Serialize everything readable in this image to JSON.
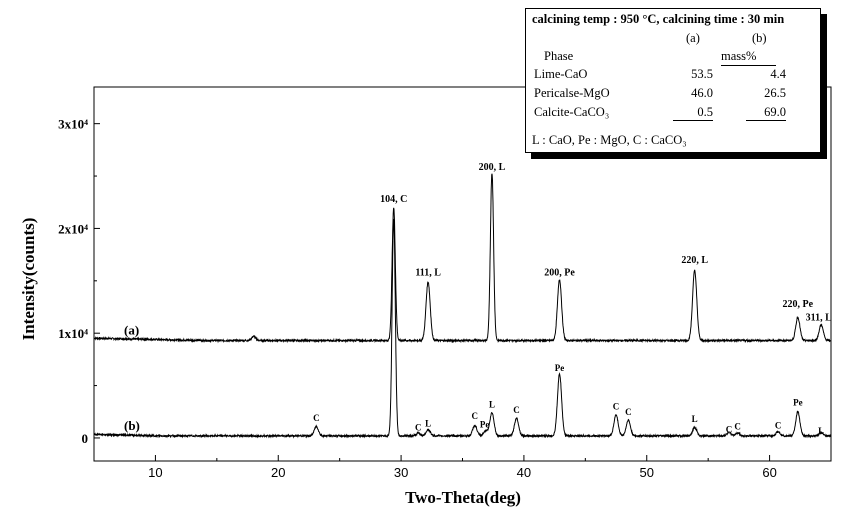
{
  "chart_data": {
    "type": "line",
    "xlabel": "Two-Theta(deg)",
    "ylabel": "Intensity(counts)",
    "xlim": [
      5,
      65
    ],
    "ylim": [
      -2200,
      33500
    ],
    "x_ticks": [
      "10",
      "20",
      "30",
      "40",
      "50",
      "60"
    ],
    "y_ticks": [
      {
        "value": 0,
        "label": "0"
      },
      {
        "value": 10000,
        "label": "1x10⁴"
      },
      {
        "value": 20000,
        "label": "2x10⁴"
      },
      {
        "value": 30000,
        "label": "3x10⁴"
      }
    ],
    "grid": false,
    "series": [
      {
        "name": "(a)",
        "baseline": 9300,
        "peaks": [
          {
            "x": 18.0,
            "h": 400
          },
          {
            "x": 29.4,
            "h": 12700
          },
          {
            "x": 32.2,
            "h": 5600
          },
          {
            "x": 37.4,
            "h": 16000
          },
          {
            "x": 42.9,
            "h": 5800
          },
          {
            "x": 53.9,
            "h": 6700
          },
          {
            "x": 62.3,
            "h": 2200
          },
          {
            "x": 64.2,
            "h": 1500
          }
        ],
        "annotations": [
          {
            "x": 29.4,
            "y": 22500,
            "text": "104, C"
          },
          {
            "x": 32.2,
            "y": 15500,
            "text": "111, L"
          },
          {
            "x": 37.4,
            "y": 25600,
            "text": "200, L"
          },
          {
            "x": 42.9,
            "y": 15500,
            "text": "200, Pe"
          },
          {
            "x": 53.9,
            "y": 16700,
            "text": "220, L"
          },
          {
            "x": 62.3,
            "y": 12500,
            "text": "220, Pe"
          },
          {
            "x": 64.0,
            "y": 11200,
            "text": "311, L"
          }
        ]
      },
      {
        "name": "(b)",
        "baseline": 200,
        "peaks": [
          {
            "x": 23.1,
            "h": 900
          },
          {
            "x": 29.4,
            "h": 20700
          },
          {
            "x": 31.4,
            "h": 250
          },
          {
            "x": 32.2,
            "h": 600
          },
          {
            "x": 36.0,
            "h": 1000
          },
          {
            "x": 36.9,
            "h": 500
          },
          {
            "x": 37.4,
            "h": 2200
          },
          {
            "x": 39.4,
            "h": 1700
          },
          {
            "x": 42.9,
            "h": 5900
          },
          {
            "x": 47.5,
            "h": 2000
          },
          {
            "x": 48.5,
            "h": 1500
          },
          {
            "x": 53.9,
            "h": 800
          },
          {
            "x": 56.7,
            "h": 300
          },
          {
            "x": 57.4,
            "h": 300
          },
          {
            "x": 60.7,
            "h": 400
          },
          {
            "x": 62.3,
            "h": 2300
          },
          {
            "x": 64.2,
            "h": 300
          }
        ],
        "annotations": [
          {
            "x": 23.1,
            "y": 1600,
            "text": "C"
          },
          {
            "x": 31.4,
            "y": 700,
            "text": "C"
          },
          {
            "x": 32.2,
            "y": 1100,
            "text": "L"
          },
          {
            "x": 36.0,
            "y": 1800,
            "text": "C"
          },
          {
            "x": 36.8,
            "y": 1000,
            "text": "Pe"
          },
          {
            "x": 37.4,
            "y": 2900,
            "text": "L"
          },
          {
            "x": 39.4,
            "y": 2400,
            "text": "C"
          },
          {
            "x": 42.9,
            "y": 6400,
            "text": "Pe"
          },
          {
            "x": 47.5,
            "y": 2700,
            "text": "C"
          },
          {
            "x": 48.5,
            "y": 2200,
            "text": "C"
          },
          {
            "x": 53.9,
            "y": 1500,
            "text": "L"
          },
          {
            "x": 56.7,
            "y": 500,
            "text": "C"
          },
          {
            "x": 57.4,
            "y": 800,
            "text": "C"
          },
          {
            "x": 60.7,
            "y": 900,
            "text": "C"
          },
          {
            "x": 62.3,
            "y": 3100,
            "text": "Pe"
          },
          {
            "x": 64.2,
            "y": 400,
            "text": "L"
          }
        ]
      }
    ]
  },
  "table": {
    "title": "calcining temp : 950 °C, calcining time : 30 min",
    "col_a": "(a)",
    "col_b": "(b)",
    "phase_header": "Phase",
    "mass_header": "mass%",
    "rows": [
      {
        "phase": "Lime-CaO",
        "a": "53.5",
        "b": "4.4"
      },
      {
        "phase": "Pericalse-MgO",
        "a": "46.0",
        "b": "26.5"
      },
      {
        "phase": "Calcite-CaCO₃",
        "a": "0.5",
        "b": "69.0"
      }
    ],
    "footnote": "L : CaO, Pe : MgO, C : CaCO₃"
  }
}
